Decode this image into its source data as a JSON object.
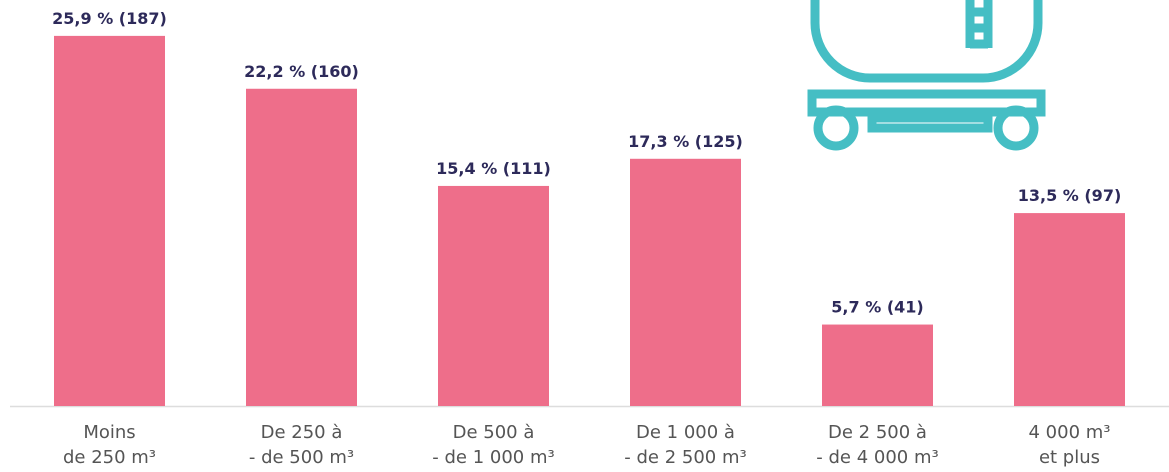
{
  "chart_data": {
    "type": "bar",
    "categories": [
      "Moins\nde 250 m³",
      "De 250 à\n- de 500 m³",
      "De 500 à\n- de 1 000 m³",
      "De 1 000 à\n- de 2 500 m³",
      "De 2 500 à\n- de 4 000 m³",
      "4 000 m³\net plus"
    ],
    "values": [
      25.9,
      22.2,
      15.4,
      17.3,
      5.7,
      13.5
    ],
    "value_labels": [
      "25,9 % (187)",
      "22,2 % (160)",
      "15,4 % (111)",
      "17,3 % (125)",
      "5,7 % (41)",
      "13,5 % (97)"
    ],
    "color": "#ee6e8a"
  }
}
